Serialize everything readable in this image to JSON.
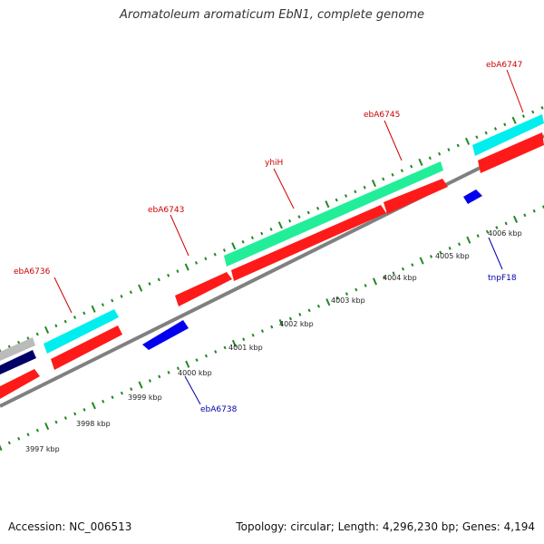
{
  "title": "Aromatoleum aromaticum EbN1, complete genome",
  "footer": {
    "accession": "Accession: NC_006513",
    "summary": "Topology: circular; Length: 4,296,230 bp; Genes: 4,194"
  },
  "colors": {
    "forward_cds": "#ff1a1a",
    "reverse_cds": "#0000ee",
    "teal_feature": "#22ee99",
    "cyan_feature": "#00eeee",
    "dark_feature": "#000066",
    "gray_feature": "#bbbbbb",
    "backbone": "#808080",
    "tick": "#228822"
  },
  "scale": {
    "unit": "kbp",
    "labels": [
      {
        "kbp": 3997,
        "text": "3997 kbp"
      },
      {
        "kbp": 3998,
        "text": "3998 kbp"
      },
      {
        "kbp": 3999,
        "text": "3999 kbp"
      },
      {
        "kbp": 4000,
        "text": "4000 kbp"
      },
      {
        "kbp": 4001,
        "text": "4001 kbp"
      },
      {
        "kbp": 4002,
        "text": "4002 kbp"
      },
      {
        "kbp": 4003,
        "text": "4003 kbp"
      },
      {
        "kbp": 4004,
        "text": "4004 kbp"
      },
      {
        "kbp": 4005,
        "text": "4005 kbp"
      },
      {
        "kbp": 4006,
        "text": "4006 kbp"
      }
    ]
  },
  "genes": [
    {
      "name": "ebA6736",
      "strand": "forward"
    },
    {
      "name": "ebA6743",
      "strand": "forward"
    },
    {
      "name": "yhiH",
      "strand": "forward"
    },
    {
      "name": "ebA6745",
      "strand": "forward"
    },
    {
      "name": "ebA6747",
      "strand": "forward"
    },
    {
      "name": "ebA6738",
      "strand": "reverse"
    },
    {
      "name": "tnpF18",
      "strand": "reverse"
    }
  ]
}
